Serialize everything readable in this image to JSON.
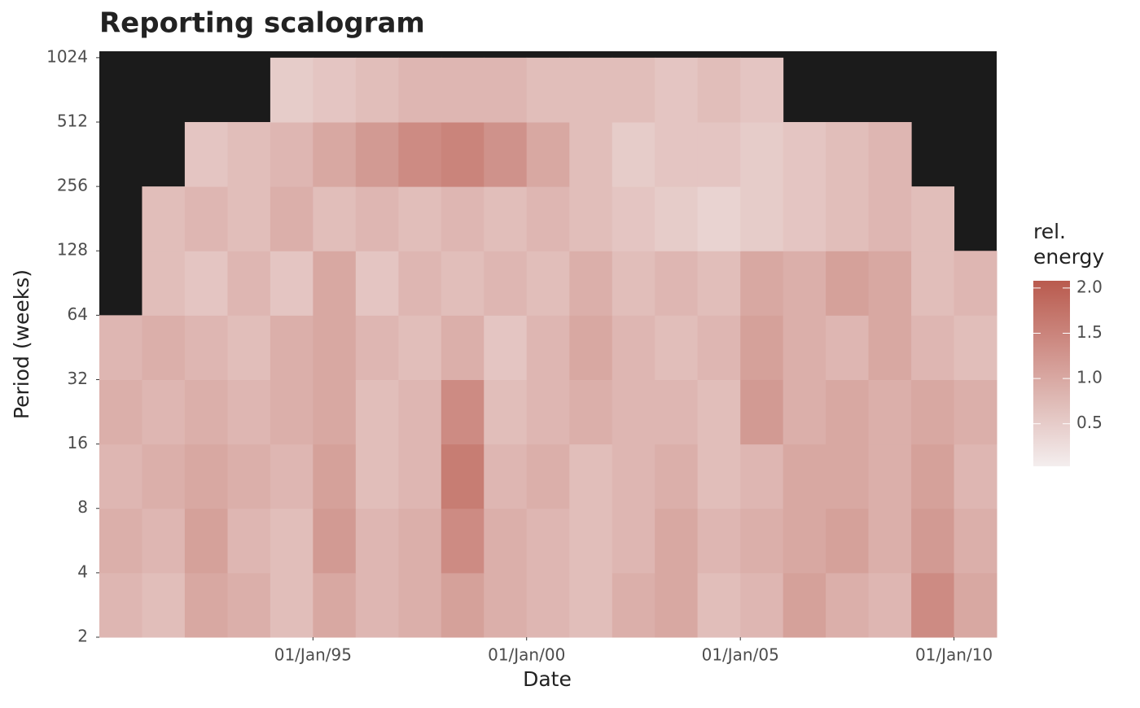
{
  "chart_data": {
    "type": "heatmap",
    "title": "Reporting scalogram",
    "x_label": "Date",
    "y_label": "Period (weeks)",
    "legend_title": "rel.\nenergy",
    "xlim": [
      "1990-01-01",
      "2011-01-01"
    ],
    "xticks": [
      {
        "value": "1995-01-01",
        "label": "01/Jan/95"
      },
      {
        "value": "2000-01-01",
        "label": "01/Jan/00"
      },
      {
        "value": "2005-01-01",
        "label": "01/Jan/05"
      },
      {
        "value": "2010-01-01",
        "label": "01/Jan/10"
      }
    ],
    "ylim": [
      2,
      1097
    ],
    "y_log2": true,
    "yticks": [
      2,
      4,
      8,
      16,
      32,
      64,
      128,
      256,
      512,
      1024
    ],
    "x_bins": [
      "1990-01-01",
      "1991-01-01",
      "1992-01-01",
      "1993-01-01",
      "1994-01-01",
      "1995-01-01",
      "1996-01-01",
      "1997-01-01",
      "1998-01-01",
      "1999-01-01",
      "2000-01-01",
      "2001-01-01",
      "2002-01-01",
      "2003-01-01",
      "2004-01-01",
      "2005-01-01",
      "2006-01-01",
      "2007-01-01",
      "2008-01-01",
      "2009-01-01",
      "2010-01-01",
      "2011-01-01"
    ],
    "y_bins": [
      2,
      4,
      8,
      16,
      32,
      64,
      128,
      256,
      512,
      1024
    ],
    "values": [
      [
        0.8,
        0.7,
        1.0,
        0.9,
        0.7,
        1.0,
        0.8,
        0.9,
        1.1,
        0.9,
        0.8,
        0.7,
        0.9,
        1.0,
        0.7,
        0.8,
        1.1,
        0.9,
        0.8,
        1.4,
        1.0
      ],
      [
        0.9,
        0.8,
        1.1,
        0.8,
        0.7,
        1.2,
        0.8,
        0.9,
        1.4,
        0.9,
        0.8,
        0.7,
        0.8,
        1.0,
        0.8,
        0.9,
        1.0,
        1.1,
        0.9,
        1.2,
        0.9
      ],
      [
        0.8,
        0.9,
        1.0,
        0.9,
        0.8,
        1.1,
        0.7,
        0.8,
        1.6,
        0.8,
        0.9,
        0.7,
        0.8,
        0.9,
        0.7,
        0.8,
        1.0,
        1.0,
        0.9,
        1.1,
        0.8
      ],
      [
        0.9,
        0.8,
        0.9,
        0.8,
        0.9,
        1.0,
        0.7,
        0.8,
        1.4,
        0.7,
        0.8,
        0.9,
        0.8,
        0.8,
        0.7,
        1.2,
        0.9,
        1.0,
        0.9,
        1.0,
        0.9
      ],
      [
        0.8,
        0.9,
        0.8,
        0.7,
        0.9,
        1.0,
        0.8,
        0.7,
        0.9,
        0.6,
        0.8,
        1.0,
        0.8,
        0.7,
        0.8,
        1.1,
        0.9,
        0.8,
        1.0,
        0.8,
        0.7
      ],
      [
        null,
        0.7,
        0.6,
        0.8,
        0.6,
        1.0,
        0.6,
        0.8,
        0.7,
        0.8,
        0.7,
        0.9,
        0.7,
        0.8,
        0.7,
        1.0,
        0.9,
        1.1,
        1.0,
        0.7,
        0.8
      ],
      [
        null,
        0.7,
        0.8,
        0.7,
        0.9,
        0.7,
        0.8,
        0.7,
        0.8,
        0.7,
        0.8,
        0.7,
        0.6,
        0.5,
        0.4,
        0.5,
        0.6,
        0.7,
        0.8,
        0.7,
        null
      ],
      [
        null,
        null,
        0.6,
        0.7,
        0.8,
        1.0,
        1.2,
        1.4,
        1.5,
        1.3,
        1.0,
        0.7,
        0.5,
        0.6,
        0.6,
        0.5,
        0.6,
        0.7,
        0.8,
        null,
        null
      ],
      [
        null,
        null,
        null,
        null,
        0.5,
        0.6,
        0.7,
        0.8,
        0.8,
        0.8,
        0.7,
        0.7,
        0.7,
        0.6,
        0.7,
        0.6,
        null,
        null,
        null,
        null,
        null
      ]
    ],
    "background_color": "#1b1b1b",
    "color_low": "#f4eeee",
    "color_high": "#b95a4e",
    "color_limits": [
      0.03,
      2.08
    ],
    "legend_ticks": [
      0.5,
      {
        "value": 1,
        "label": "1.0"
      },
      1.5,
      {
        "value": 2,
        "label": "2.0"
      }
    ]
  }
}
